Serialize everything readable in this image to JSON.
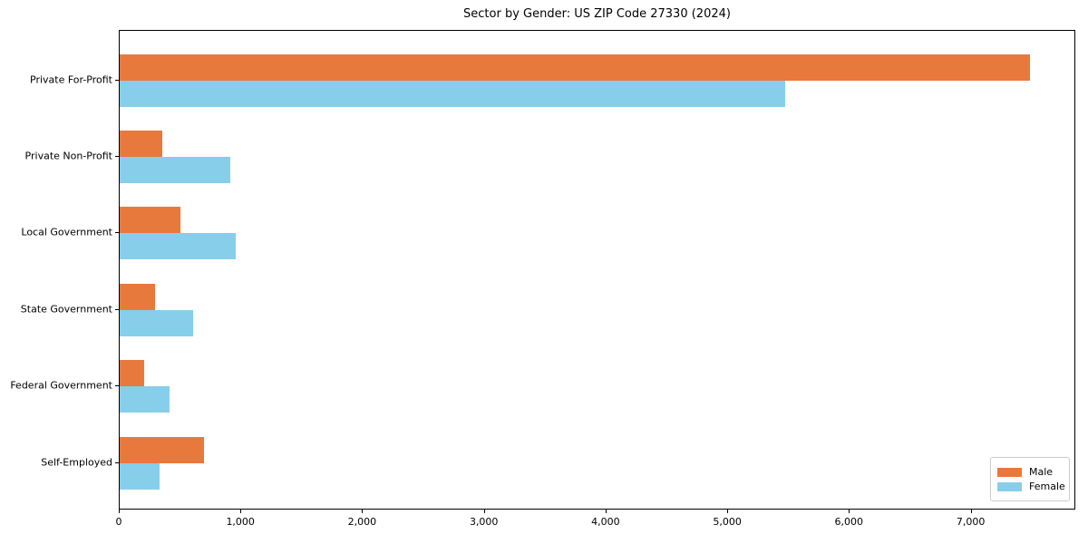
{
  "chart_data": {
    "type": "bar",
    "orientation": "horizontal",
    "title": "Sector by Gender: US ZIP Code 27330 (2024)",
    "categories": [
      "Private For-Profit",
      "Private Non-Profit",
      "Local Government",
      "State Government",
      "Federal Government",
      "Self-Employed"
    ],
    "series": [
      {
        "name": "Male",
        "color": "#e8793d",
        "values": [
          7480,
          350,
          500,
          290,
          200,
          690
        ]
      },
      {
        "name": "Female",
        "color": "#87ceeb",
        "values": [
          5470,
          910,
          950,
          600,
          410,
          330
        ]
      }
    ],
    "xlabel": "",
    "ylabel": "",
    "xlim": [
      0,
      7860
    ],
    "x_ticks": [
      0,
      1000,
      2000,
      3000,
      4000,
      5000,
      6000,
      7000
    ],
    "x_tick_labels": [
      "0",
      "1,000",
      "2,000",
      "3,000",
      "4,000",
      "5,000",
      "6,000",
      "7,000"
    ],
    "legend": {
      "position": "lower right",
      "entries": [
        "Male",
        "Female"
      ]
    },
    "grid": false,
    "background_color": "#ffffff",
    "border_color": "#000000"
  }
}
